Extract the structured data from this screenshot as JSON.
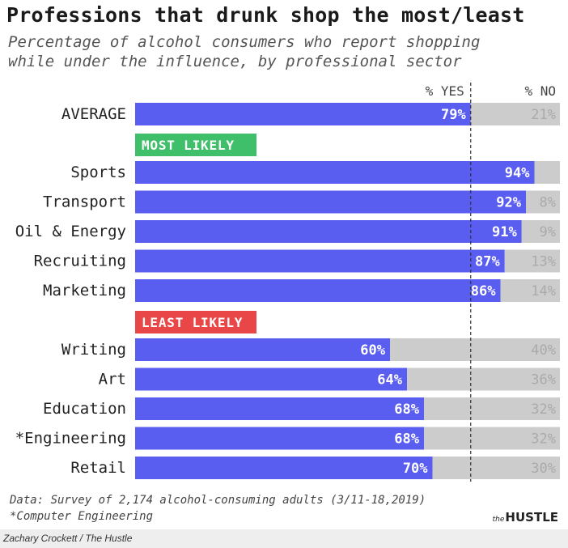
{
  "title": "Professions that drunk shop the most/least",
  "subtitle_lines": [
    "Percentage of alcohol consumers who report shopping",
    "while under the influence, by professional sector"
  ],
  "footnotes": [
    "Data: Survey of 2,174 alcohol-consuming adults (3/11-18,2019)",
    "*Computer Engineering"
  ],
  "logo": {
    "small": "the",
    "main": "HUSTLE"
  },
  "credit": "Zachary Crockett / The Hustle",
  "colors": {
    "yes_bar": "#5a5ef0",
    "no_bar": "#cccccc",
    "yes_text": "#ffffff",
    "no_text": "#aaaaaa",
    "most_badge": "#3fbf6a",
    "least_badge": "#e94747",
    "badge_text": "#ffffff"
  },
  "chart_data": {
    "type": "bar",
    "orientation": "horizontal",
    "stacked": true,
    "column_headers": {
      "yes": "% YES",
      "no": "% NO"
    },
    "average": {
      "label": "AVERAGE",
      "yes": 79,
      "no": 21,
      "yes_label": "79%",
      "no_label": "21%"
    },
    "groups": [
      {
        "badge": "MOST LIKELY",
        "badge_color": "green",
        "rows": [
          {
            "label": "Sports",
            "yes": 94,
            "no": 6,
            "yes_label": "94%",
            "no_label": ""
          },
          {
            "label": "Transport",
            "yes": 92,
            "no": 8,
            "yes_label": "92%",
            "no_label": "8%"
          },
          {
            "label": "Oil & Energy",
            "yes": 91,
            "no": 9,
            "yes_label": "91%",
            "no_label": "9%"
          },
          {
            "label": "Recruiting",
            "yes": 87,
            "no": 13,
            "yes_label": "87%",
            "no_label": "13%"
          },
          {
            "label": "Marketing",
            "yes": 86,
            "no": 14,
            "yes_label": "86%",
            "no_label": "14%"
          }
        ]
      },
      {
        "badge": "LEAST LIKELY",
        "badge_color": "red",
        "rows": [
          {
            "label": "Writing",
            "yes": 60,
            "no": 40,
            "yes_label": "60%",
            "no_label": "40%"
          },
          {
            "label": "Art",
            "yes": 64,
            "no": 36,
            "yes_label": "64%",
            "no_label": "36%"
          },
          {
            "label": "Education",
            "yes": 68,
            "no": 32,
            "yes_label": "68%",
            "no_label": "32%"
          },
          {
            "label": "*Engineering",
            "yes": 68,
            "no": 32,
            "yes_label": "68%",
            "no_label": "32%"
          },
          {
            "label": "Retail",
            "yes": 70,
            "no": 30,
            "yes_label": "70%",
            "no_label": "30%"
          }
        ]
      }
    ],
    "reference_line": {
      "value": 79,
      "style": "dashed"
    },
    "xlim": [
      0,
      100
    ],
    "grid": false
  }
}
